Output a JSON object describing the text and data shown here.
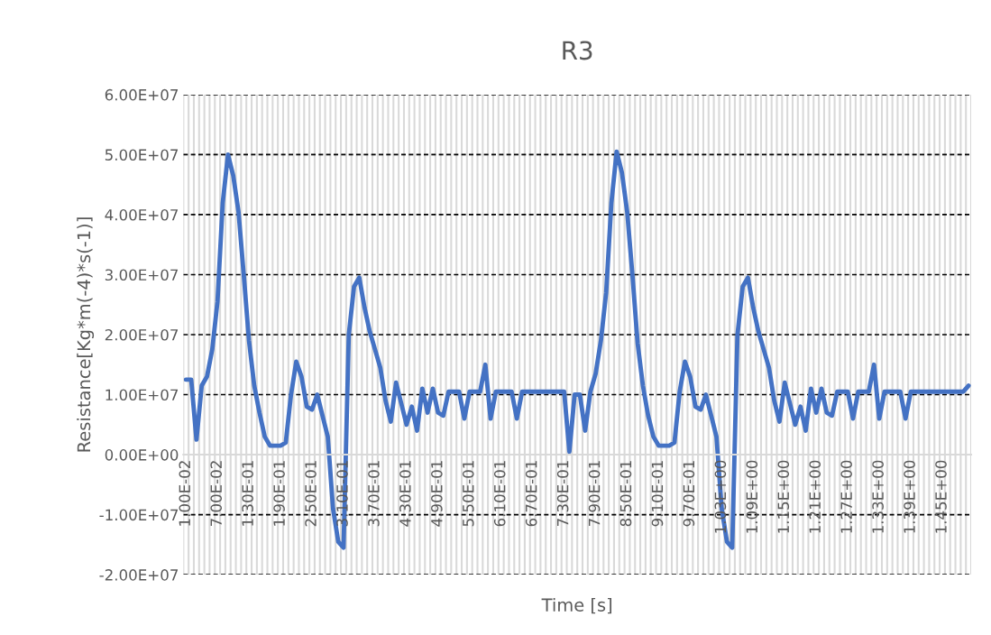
{
  "chart_data": {
    "type": "line",
    "title": "R3",
    "xlabel": "Time [s]",
    "ylabel": "Resistance[Kg*m(-4)*s(-1)]",
    "categories": [
      "1.00E-02",
      null,
      null,
      null,
      null,
      null,
      "7.00E-02",
      null,
      null,
      null,
      null,
      null,
      "1.30E-01",
      null,
      null,
      null,
      null,
      null,
      "1.90E-01",
      null,
      null,
      null,
      null,
      null,
      "2.50E-01",
      null,
      null,
      null,
      null,
      null,
      "3.10E-01",
      null,
      null,
      null,
      null,
      null,
      "3.70E-01",
      null,
      null,
      null,
      null,
      null,
      "4.30E-01",
      null,
      null,
      null,
      null,
      null,
      "4.90E-01",
      null,
      null,
      null,
      null,
      null,
      "5.50E-01",
      null,
      null,
      null,
      null,
      null,
      "6.10E-01",
      null,
      null,
      null,
      null,
      null,
      "6.70E-01",
      null,
      null,
      null,
      null,
      null,
      "7.30E-01",
      null,
      null,
      null,
      null,
      null,
      "7.90E-01",
      null,
      null,
      null,
      null,
      null,
      "8.50E-01",
      null,
      null,
      null,
      null,
      null,
      "9.10E-01",
      null,
      null,
      null,
      null,
      null,
      "9.70E-01",
      null,
      null,
      null,
      null,
      null,
      "1.03E+00",
      null,
      null,
      null,
      null,
      null,
      "1.09E+00",
      null,
      null,
      null,
      null,
      null,
      "1.15E+00",
      null,
      null,
      null,
      null,
      null,
      "1.21E+00",
      null,
      null,
      null,
      null,
      null,
      "1.27E+00",
      null,
      null,
      null,
      null,
      null,
      "1.33E+00",
      null,
      null,
      null,
      null,
      null,
      "1.39E+00",
      null,
      null,
      null,
      null,
      null,
      "1.45E+00",
      null,
      null,
      null,
      null,
      null
    ],
    "series": [
      {
        "color": "#4472c4",
        "values": [
          12500000.0,
          12500000.0,
          2500000.0,
          11500000.0,
          13000000.0,
          17500000.0,
          25500000.0,
          42000000.0,
          50000000.0,
          46500000.0,
          40500000.0,
          30000000.0,
          19000000.0,
          11500000.0,
          7000000.0,
          3000000.0,
          1500000.0,
          1500000.0,
          1500000.0,
          2000000.0,
          10000000.0,
          15500000.0,
          13000000.0,
          8000000.0,
          7500000.0,
          10000000.0,
          6500000.0,
          3000000.0,
          -9000000.0,
          -14500000.0,
          -15500000.0,
          20000000.0,
          28000000.0,
          29500000.0,
          24500000.0,
          20500000.0,
          17500000.0,
          14500000.0,
          9000000.0,
          5500000.0,
          12000000.0,
          8500000.0,
          5000000.0,
          8000000.0,
          4000000.0,
          11000000.0,
          7000000.0,
          11000000.0,
          7000000.0,
          6500000.0,
          10500000.0,
          10500000.0,
          10500000.0,
          6000000.0,
          10500000.0,
          10500000.0,
          10500000.0,
          15000000.0,
          6000000.0,
          10500000.0,
          10500000.0,
          10500000.0,
          10500000.0,
          6000000.0,
          10500000.0,
          10500000.0,
          10500000.0,
          10500000.0,
          10500000.0,
          10500000.0,
          10500000.0,
          10500000.0,
          10500000.0,
          500000.0,
          10000000.0,
          10000000.0,
          4000000.0,
          10500000.0,
          13500000.0,
          19000000.0,
          27000000.0,
          42000000.0,
          50500000.0,
          47000000.0,
          40500000.0,
          30000000.0,
          18500000.0,
          11500000.0,
          6500000.0,
          3000000.0,
          1500000.0,
          1500000.0,
          1500000.0,
          2000000.0,
          10500000.0,
          15500000.0,
          13000000.0,
          8000000.0,
          7500000.0,
          10000000.0,
          6500000.0,
          3000000.0,
          -9000000.0,
          -14500000.0,
          -15500000.0,
          20000000.0,
          28000000.0,
          29500000.0,
          24500000.0,
          20500000.0,
          17500000.0,
          14500000.0,
          9000000.0,
          5500000.0,
          12000000.0,
          8500000.0,
          5000000.0,
          8000000.0,
          4000000.0,
          11000000.0,
          7000000.0,
          11000000.0,
          7000000.0,
          6500000.0,
          10500000.0,
          10500000.0,
          10500000.0,
          6000000.0,
          10500000.0,
          10500000.0,
          10500000.0,
          15000000.0,
          6000000.0,
          10500000.0,
          10500000.0,
          10500000.0,
          10500000.0,
          6000000.0,
          10500000.0,
          10500000.0,
          10500000.0,
          10500000.0,
          10500000.0,
          10500000.0,
          10500000.0,
          10500000.0,
          10500000.0,
          10500000.0,
          10500000.0,
          11500000.0
        ]
      }
    ],
    "ylim": [
      -20000000.0,
      60000000.0
    ],
    "yticks": [
      {
        "value": -20000000.0,
        "label": "-2.00E+07"
      },
      {
        "value": -10000000.0,
        "label": "-1.00E+07"
      },
      {
        "value": 0,
        "label": "0.00E+00"
      },
      {
        "value": 10000000.0,
        "label": "1.00E+07"
      },
      {
        "value": 20000000.0,
        "label": "2.00E+07"
      },
      {
        "value": 30000000.0,
        "label": "3.00E+07"
      },
      {
        "value": 40000000.0,
        "label": "4.00E+07"
      },
      {
        "value": 50000000.0,
        "label": "5.00E+07"
      },
      {
        "value": 60000000.0,
        "label": "6.00E+07"
      }
    ],
    "grid": true,
    "marker": "none",
    "line_style": "solid"
  }
}
